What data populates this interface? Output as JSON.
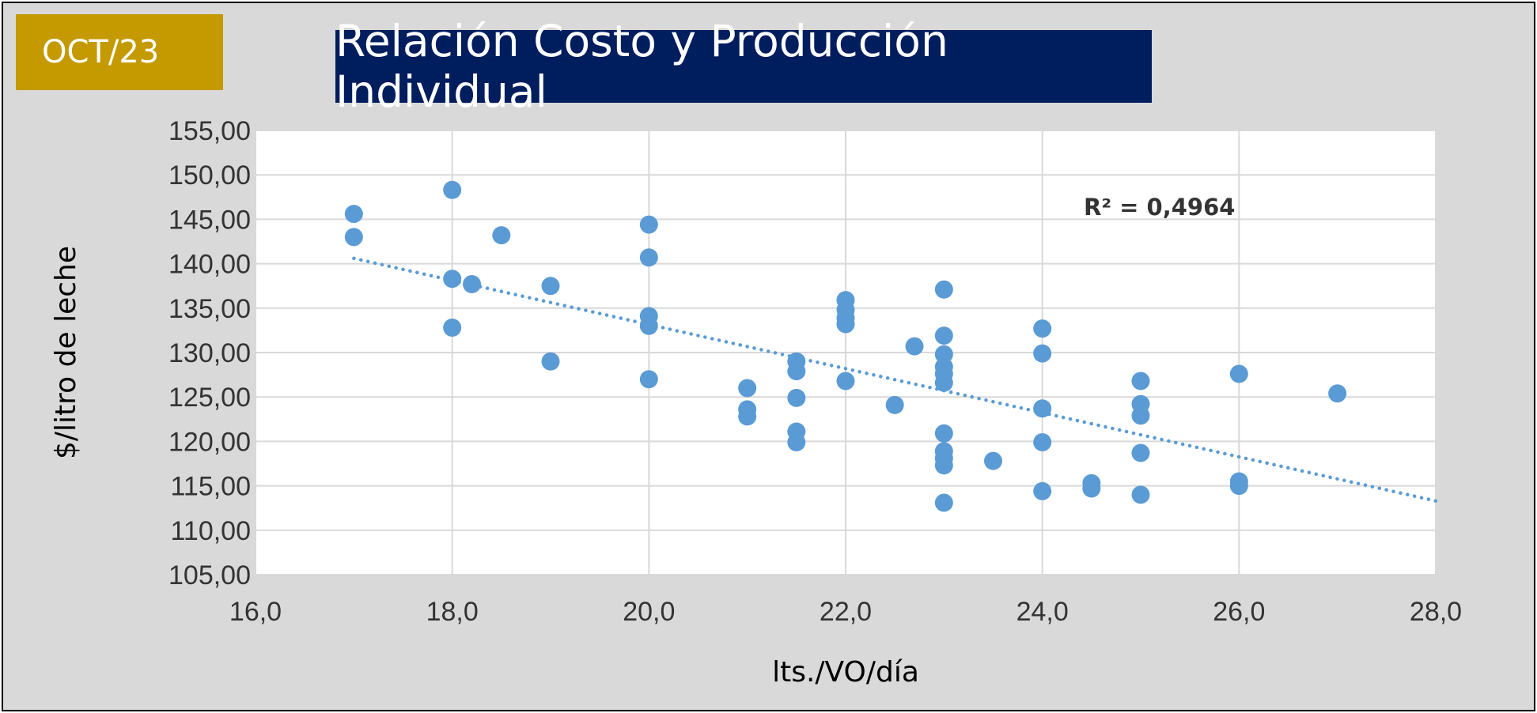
{
  "badge": "OCT/23",
  "chart_data": {
    "type": "scatter",
    "title": "Relación Costo y Producción Individual",
    "xlabel": "lts./VO/día",
    "ylabel": "$/litro de leche",
    "xlim": [
      16,
      28
    ],
    "ylim": [
      105,
      155
    ],
    "x_ticks": [
      "16,0",
      "18,0",
      "20,0",
      "22,0",
      "24,0",
      "26,0",
      "28,0"
    ],
    "y_ticks": [
      "105,00",
      "110,00",
      "115,00",
      "120,00",
      "125,00",
      "130,00",
      "135,00",
      "140,00",
      "145,00",
      "150,00",
      "155,00"
    ],
    "grid": true,
    "point_color": "#5b9bd5",
    "trendline": {
      "type": "linear",
      "style": "dotted",
      "color": "#5b9bd5",
      "x": [
        17,
        28
      ],
      "y": [
        140.6,
        113.3
      ]
    },
    "r2_label": "R² = 0,4964",
    "points": [
      {
        "x": 17.0,
        "y": 145.6
      },
      {
        "x": 17.0,
        "y": 143.0
      },
      {
        "x": 18.0,
        "y": 148.3
      },
      {
        "x": 18.0,
        "y": 138.3
      },
      {
        "x": 18.0,
        "y": 132.8
      },
      {
        "x": 18.2,
        "y": 137.7
      },
      {
        "x": 18.5,
        "y": 143.2
      },
      {
        "x": 19.0,
        "y": 137.5
      },
      {
        "x": 19.0,
        "y": 129.0
      },
      {
        "x": 20.0,
        "y": 144.4
      },
      {
        "x": 20.0,
        "y": 140.7
      },
      {
        "x": 20.0,
        "y": 134.1
      },
      {
        "x": 20.0,
        "y": 133.0
      },
      {
        "x": 20.0,
        "y": 127.0
      },
      {
        "x": 21.0,
        "y": 126.0
      },
      {
        "x": 21.0,
        "y": 123.6
      },
      {
        "x": 21.0,
        "y": 122.8
      },
      {
        "x": 21.5,
        "y": 129.0
      },
      {
        "x": 21.5,
        "y": 127.9
      },
      {
        "x": 21.5,
        "y": 124.9
      },
      {
        "x": 21.5,
        "y": 121.1
      },
      {
        "x": 21.5,
        "y": 119.9
      },
      {
        "x": 22.0,
        "y": 135.9
      },
      {
        "x": 22.0,
        "y": 134.8
      },
      {
        "x": 22.0,
        "y": 133.9
      },
      {
        "x": 22.0,
        "y": 133.2
      },
      {
        "x": 22.0,
        "y": 126.8
      },
      {
        "x": 22.5,
        "y": 124.1
      },
      {
        "x": 22.7,
        "y": 130.7
      },
      {
        "x": 23.0,
        "y": 137.1
      },
      {
        "x": 23.0,
        "y": 131.9
      },
      {
        "x": 23.0,
        "y": 129.8
      },
      {
        "x": 23.0,
        "y": 128.4
      },
      {
        "x": 23.0,
        "y": 127.6
      },
      {
        "x": 23.0,
        "y": 126.6
      },
      {
        "x": 23.0,
        "y": 120.9
      },
      {
        "x": 23.0,
        "y": 118.9
      },
      {
        "x": 23.0,
        "y": 118.1
      },
      {
        "x": 23.0,
        "y": 117.3
      },
      {
        "x": 23.0,
        "y": 113.1
      },
      {
        "x": 23.5,
        "y": 117.8
      },
      {
        "x": 24.0,
        "y": 132.7
      },
      {
        "x": 24.0,
        "y": 129.9
      },
      {
        "x": 24.0,
        "y": 123.7
      },
      {
        "x": 24.0,
        "y": 119.9
      },
      {
        "x": 24.0,
        "y": 114.4
      },
      {
        "x": 24.5,
        "y": 115.3
      },
      {
        "x": 24.5,
        "y": 114.7
      },
      {
        "x": 25.0,
        "y": 126.8
      },
      {
        "x": 25.0,
        "y": 124.2
      },
      {
        "x": 25.0,
        "y": 122.9
      },
      {
        "x": 25.0,
        "y": 118.7
      },
      {
        "x": 25.0,
        "y": 114.0
      },
      {
        "x": 26.0,
        "y": 127.6
      },
      {
        "x": 26.0,
        "y": 115.5
      },
      {
        "x": 26.0,
        "y": 115.0
      },
      {
        "x": 27.0,
        "y": 125.4
      }
    ]
  }
}
